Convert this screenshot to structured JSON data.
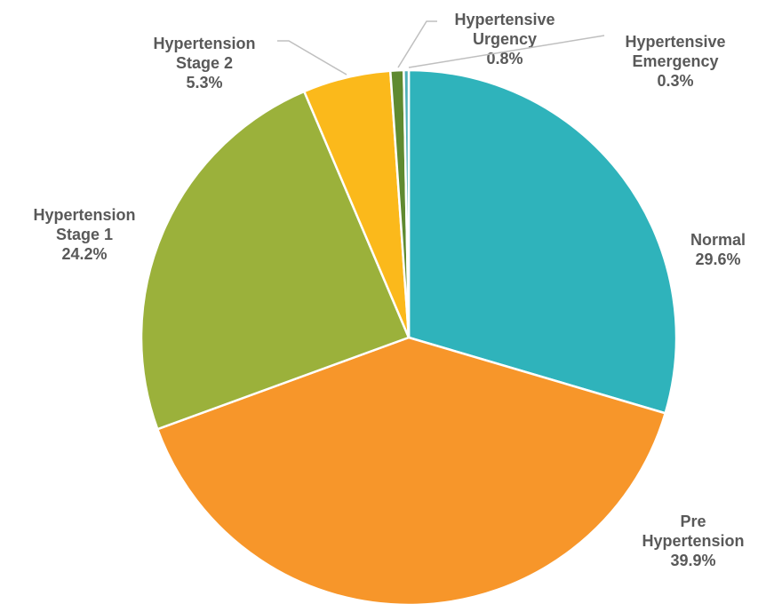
{
  "chart_data": {
    "type": "pie",
    "categories": [
      "Normal",
      "Pre Hypertension",
      "Hypertension Stage 1",
      "Hypertension Stage 2",
      "Hypertensive Urgency",
      "Hypertensive Emergency"
    ],
    "values": [
      29.6,
      39.9,
      24.2,
      5.3,
      0.8,
      0.3
    ],
    "value_labels": [
      "29.6%",
      "39.9%",
      "24.2%",
      "5.3%",
      "0.8%",
      "0.3%"
    ],
    "colors": [
      "#2fb3bb",
      "#f7962a",
      "#9bb13b",
      "#fbb91b",
      "#5f8a30",
      "#4fb0b8"
    ]
  }
}
